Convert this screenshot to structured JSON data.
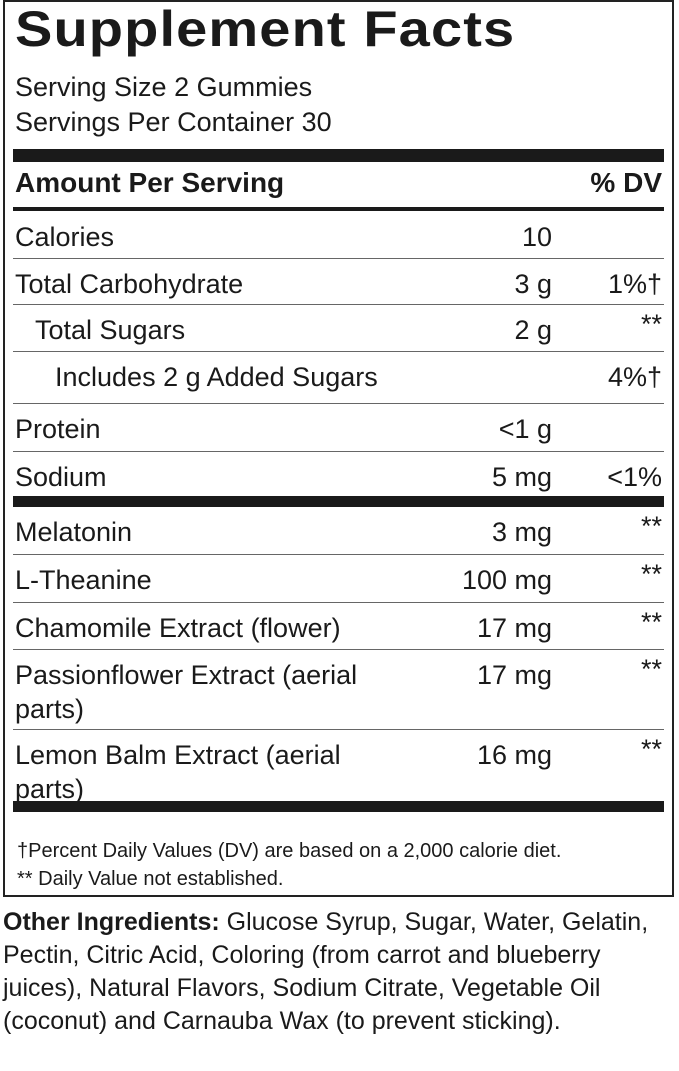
{
  "title": "Supplement Facts",
  "serving_size": "Serving Size 2 Gummies",
  "servings_per_container": "Servings Per Container 30",
  "header": {
    "amount": "Amount Per Serving",
    "dv": "% DV"
  },
  "rows": [
    {
      "name": "Calories",
      "amount": "10"
    },
    {
      "name": "Total Carbohydrate",
      "amount": "3 g",
      "dv": "1%†"
    },
    {
      "name": "Total Sugars",
      "amount": "2 g",
      "dv": "**"
    },
    {
      "name": "Includes 2 g Added Sugars",
      "dv": "4%†"
    },
    {
      "name": "Protein",
      "amount": "<1 g"
    },
    {
      "name": "Sodium",
      "amount": "5 mg",
      "dv": "<1%"
    },
    {
      "name": "Melatonin",
      "amount": "3 mg",
      "dv": "**"
    },
    {
      "name": "L-Theanine",
      "amount": "100 mg",
      "dv": "**"
    },
    {
      "name": "Chamomile Extract (flower)",
      "amount": "17 mg",
      "dv": "**"
    },
    {
      "name": "Passionflower Extract (aerial parts)",
      "amount": "17 mg",
      "dv": "**"
    },
    {
      "name": "Lemon Balm Extract (aerial parts)",
      "amount": "16 mg",
      "dv": "**"
    }
  ],
  "footnotes": [
    "†Percent Daily Values (DV) are based on a 2,000 calorie diet.",
    "** Daily Value not established."
  ],
  "other_ingredients": {
    "label": "Other Ingredients:",
    "text": "Glucose Syrup, Sugar, Water, Gelatin, Pectin, Citric Acid, Coloring (from carrot and blueberry juices), Natural Flavors, Sodium Citrate, Vegetable Oil (coconut) and Carnauba Wax (to prevent sticking)."
  }
}
